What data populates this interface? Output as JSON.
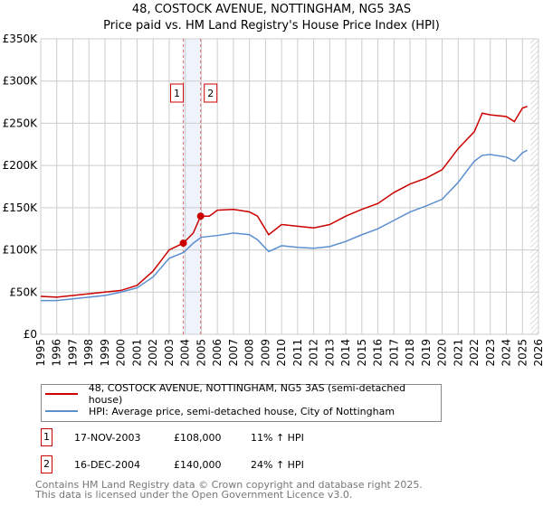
{
  "title": "48, COSTOCK AVENUE, NOTTINGHAM, NG5 3AS",
  "subtitle": "Price paid vs. HM Land Registry's House Price Index (HPI)",
  "chart_data": {
    "type": "line",
    "ylabels": [
      "£0",
      "£50K",
      "£100K",
      "£150K",
      "£200K",
      "£250K",
      "£300K",
      "£350K"
    ],
    "yticks": [
      0,
      50000,
      100000,
      150000,
      200000,
      250000,
      300000,
      350000
    ],
    "ylim": [
      0,
      350000
    ],
    "xlim": [
      1995,
      2026
    ],
    "xlabels": [
      "1995",
      "1996",
      "1997",
      "1998",
      "1999",
      "2000",
      "2001",
      "2002",
      "2003",
      "2004",
      "2005",
      "2006",
      "2007",
      "2008",
      "2009",
      "2010",
      "2011",
      "2012",
      "2013",
      "2014",
      "2015",
      "2016",
      "2017",
      "2018",
      "2019",
      "2020",
      "2021",
      "2022",
      "2023",
      "2024",
      "2025",
      "2026"
    ],
    "series": [
      {
        "name": "48, COSTOCK AVENUE, NOTTINGHAM, NG5 3AS (semi-detached house)",
        "color": "#cc0000",
        "x": [
          1995,
          1996,
          1997,
          1998,
          1999,
          2000,
          2001,
          2002,
          2003,
          2003.88,
          2004.5,
          2004.96,
          2005.5,
          2006,
          2007,
          2008,
          2008.5,
          2009.2,
          2010,
          2011,
          2012,
          2013,
          2014,
          2015,
          2016,
          2017,
          2018,
          2019,
          2020,
          2021,
          2022,
          2022.5,
          2023,
          2024,
          2024.5,
          2025,
          2025.3
        ],
        "y": [
          45000,
          44000,
          46000,
          48000,
          50000,
          52000,
          58000,
          75000,
          100000,
          108000,
          120000,
          140000,
          140000,
          147000,
          148000,
          145000,
          140000,
          118000,
          130000,
          128000,
          126000,
          130000,
          140000,
          148000,
          155000,
          168000,
          178000,
          185000,
          195000,
          220000,
          240000,
          262000,
          260000,
          258000,
          252000,
          268000,
          270000
        ]
      },
      {
        "name": "HPI: Average price, semi-detached house, City of Nottingham",
        "color": "#5b8fd0",
        "x": [
          1995,
          1996,
          1997,
          1998,
          1999,
          2000,
          2001,
          2002,
          2003,
          2003.9,
          2004.5,
          2005,
          2006,
          2007,
          2008,
          2008.5,
          2009.2,
          2010,
          2011,
          2012,
          2013,
          2014,
          2015,
          2016,
          2017,
          2018,
          2019,
          2020,
          2021,
          2022,
          2022.5,
          2023,
          2024,
          2024.5,
          2025,
          2025.3
        ],
        "y": [
          40000,
          40000,
          42000,
          44000,
          46000,
          50000,
          55000,
          68000,
          90000,
          97000,
          108000,
          115000,
          117000,
          120000,
          118000,
          112000,
          98000,
          105000,
          103000,
          102000,
          104000,
          110000,
          118000,
          125000,
          135000,
          145000,
          152000,
          160000,
          180000,
          205000,
          212000,
          213000,
          210000,
          205000,
          215000,
          218000
        ]
      }
    ],
    "sales": [
      {
        "label": "1",
        "x": 2003.88,
        "y": 108000
      },
      {
        "label": "2",
        "x": 2004.96,
        "y": 140000
      }
    ]
  },
  "legend": [
    "48, COSTOCK AVENUE, NOTTINGHAM, NG5 3AS (semi-detached house)",
    "HPI: Average price, semi-detached house, City of Nottingham"
  ],
  "transactions": [
    {
      "num": "1",
      "date": "17-NOV-2003",
      "price": "£108,000",
      "hpi": "11% ↑ HPI"
    },
    {
      "num": "2",
      "date": "16-DEC-2004",
      "price": "£140,000",
      "hpi": "24% ↑ HPI"
    }
  ],
  "footer": [
    "Contains HM Land Registry data © Crown copyright and database right 2025.",
    "This data is licensed under the Open Government Licence v3.0."
  ]
}
